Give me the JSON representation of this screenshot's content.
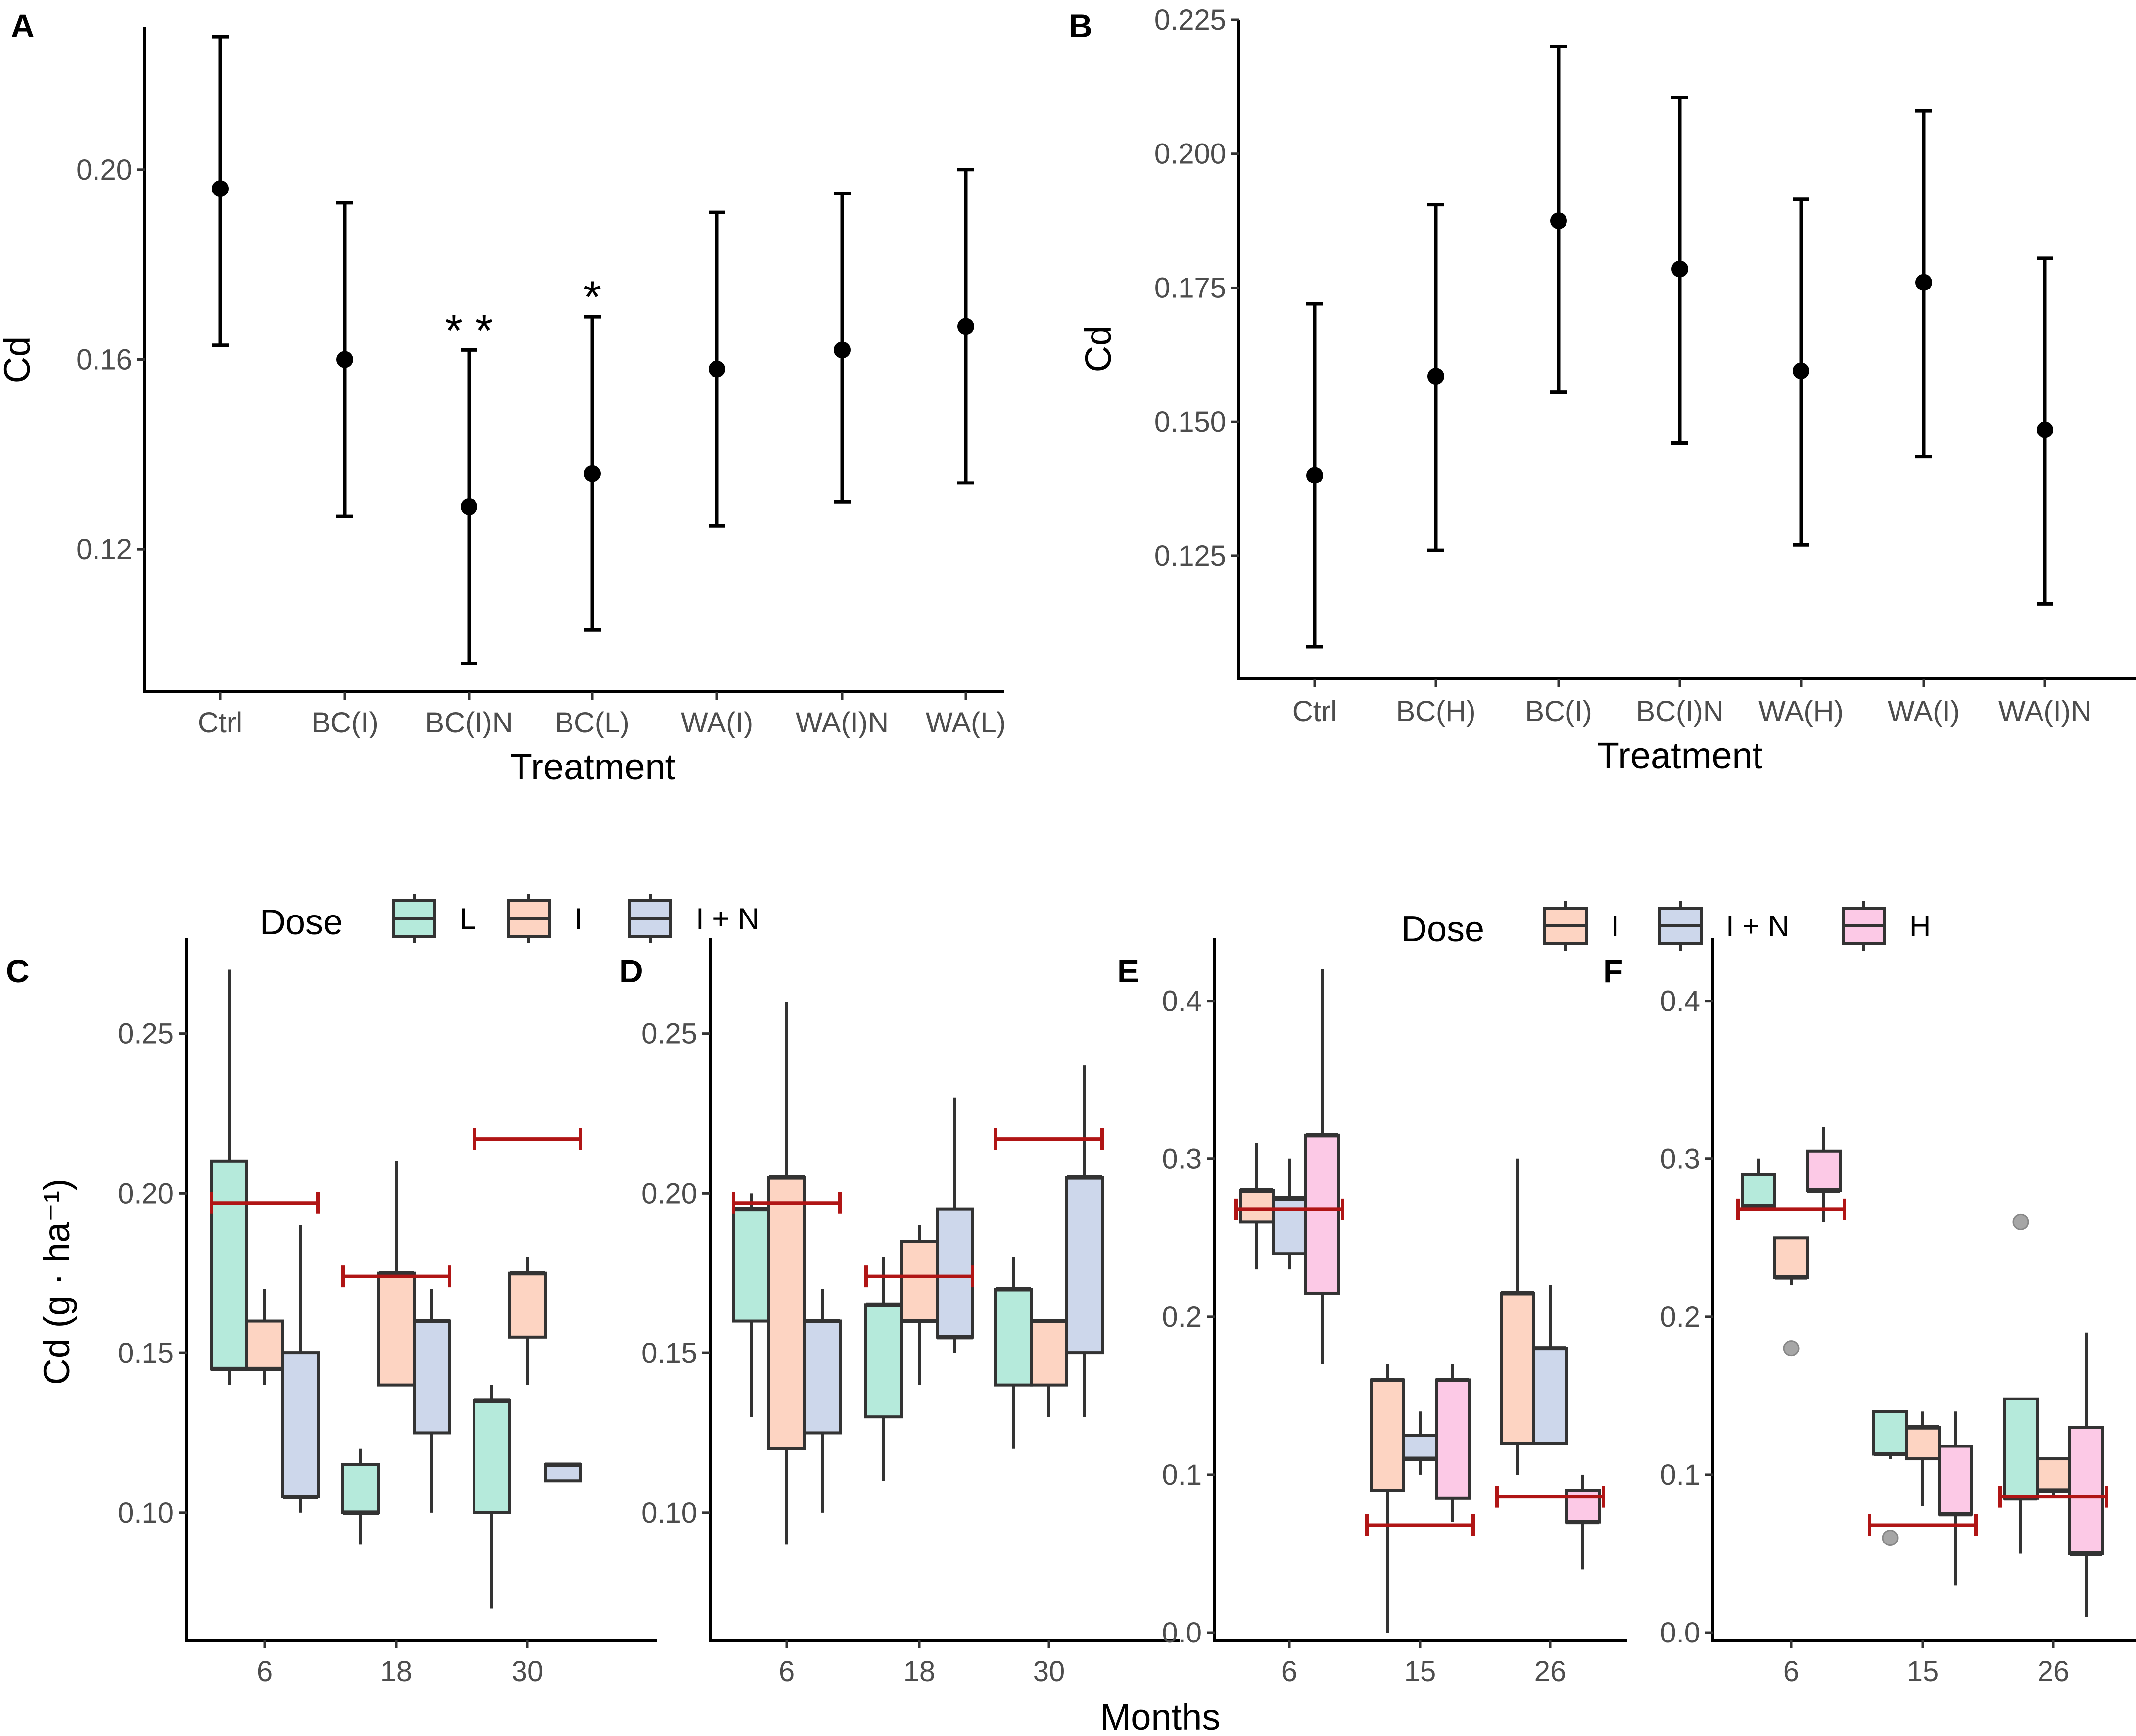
{
  "figure": {
    "xlabel_bottom": "Months",
    "colors": {
      "L": "#b5eadb",
      "I": "#fdd4c2",
      "I + N": "#cdd7eb",
      "H": "#fcc9e6",
      "ref": "#b01515"
    }
  },
  "chart_data": [
    {
      "id": "A",
      "type": "errorbar",
      "panel_label": "A",
      "xlabel": "Treatment",
      "ylabel": "Cd",
      "ylim": [
        0.09,
        0.23
      ],
      "yticks": [
        0.12,
        0.16,
        0.2
      ],
      "ytick_labels": [
        "0.12",
        "0.16",
        "0.20"
      ],
      "categories": [
        "Ctrl",
        "BC(I)",
        "BC(I)N",
        "BC(L)",
        "WA(I)",
        "WA(I)N",
        "WA(L)"
      ],
      "mean": [
        0.196,
        0.16,
        0.129,
        0.136,
        0.158,
        0.162,
        0.167
      ],
      "lower": [
        0.163,
        0.127,
        0.096,
        0.103,
        0.125,
        0.13,
        0.134
      ],
      "upper": [
        0.228,
        0.193,
        0.162,
        0.169,
        0.191,
        0.195,
        0.2
      ],
      "annotations": [
        "",
        "",
        "* *",
        "*",
        "",
        "",
        ""
      ]
    },
    {
      "id": "B",
      "type": "errorbar",
      "panel_label": "B",
      "xlabel": "Treatment",
      "ylabel": "Cd",
      "ylim": [
        0.102,
        0.225
      ],
      "yticks": [
        0.125,
        0.15,
        0.175,
        0.2,
        0.225
      ],
      "ytick_labels": [
        "0.125",
        "0.150",
        "0.175",
        "0.200",
        "0.225"
      ],
      "categories": [
        "Ctrl",
        "BC(H)",
        "BC(I)",
        "BC(I)N",
        "WA(H)",
        "WA(I)",
        "WA(I)N"
      ],
      "mean": [
        0.14,
        0.1585,
        0.1875,
        0.1785,
        0.1595,
        0.176,
        0.1485
      ],
      "lower": [
        0.108,
        0.126,
        0.1555,
        0.146,
        0.127,
        0.1435,
        0.116
      ],
      "upper": [
        0.172,
        0.1905,
        0.22,
        0.2105,
        0.1915,
        0.208,
        0.1805
      ],
      "annotations": [
        "",
        "",
        "",
        "",
        "",
        "",
        ""
      ]
    },
    {
      "id": "C",
      "type": "boxplot",
      "panel_label": "C",
      "xlabel": "",
      "ylabel": "Cd (g · ha⁻¹)",
      "ylim": [
        0.06,
        0.28
      ],
      "yticks": [
        0.1,
        0.15,
        0.2,
        0.25
      ],
      "ytick_labels": [
        "0.10",
        "0.15",
        "0.20",
        "0.25"
      ],
      "categories": [
        "6",
        "18",
        "30"
      ],
      "series_names": [
        "L",
        "I",
        "I + N"
      ],
      "boxes": [
        {
          "group": 0,
          "series": 0,
          "min": 0.14,
          "q1": 0.145,
          "med": 0.145,
          "q3": 0.21,
          "max": 0.27
        },
        {
          "group": 0,
          "series": 1,
          "min": 0.14,
          "q1": 0.145,
          "med": 0.145,
          "q3": 0.16,
          "max": 0.17
        },
        {
          "group": 0,
          "series": 2,
          "min": 0.1,
          "q1": 0.105,
          "med": 0.105,
          "q3": 0.15,
          "max": 0.19
        },
        {
          "group": 1,
          "series": 0,
          "min": 0.09,
          "q1": 0.1,
          "med": 0.1,
          "q3": 0.115,
          "max": 0.12
        },
        {
          "group": 1,
          "series": 1,
          "min": 0.14,
          "q1": 0.14,
          "med": 0.175,
          "q3": 0.175,
          "max": 0.21
        },
        {
          "group": 1,
          "series": 2,
          "min": 0.1,
          "q1": 0.125,
          "med": 0.16,
          "q3": 0.16,
          "max": 0.17
        },
        {
          "group": 2,
          "series": 0,
          "min": 0.07,
          "q1": 0.1,
          "med": 0.135,
          "q3": 0.135,
          "max": 0.14
        },
        {
          "group": 2,
          "series": 1,
          "min": 0.14,
          "q1": 0.155,
          "med": 0.175,
          "q3": 0.175,
          "max": 0.18
        },
        {
          "group": 2,
          "series": 2,
          "min": 0.11,
          "q1": 0.11,
          "med": 0.115,
          "q3": 0.115,
          "max": 0.115
        }
      ],
      "outliers": [],
      "ref_lines": [
        {
          "group": 0,
          "value": 0.197
        },
        {
          "group": 1,
          "value": 0.174
        },
        {
          "group": 2,
          "value": 0.217
        }
      ]
    },
    {
      "id": "D",
      "type": "boxplot",
      "panel_label": "D",
      "xlabel": "",
      "ylabel": "",
      "ylim": [
        0.06,
        0.28
      ],
      "yticks": [
        0.1,
        0.15,
        0.2,
        0.25
      ],
      "ytick_labels": [
        "0.10",
        "0.15",
        "0.20",
        "0.25"
      ],
      "categories": [
        "6",
        "18",
        "30"
      ],
      "series_names": [
        "L",
        "I",
        "I + N"
      ],
      "boxes": [
        {
          "group": 0,
          "series": 0,
          "min": 0.13,
          "q1": 0.16,
          "med": 0.195,
          "q3": 0.195,
          "max": 0.2
        },
        {
          "group": 0,
          "series": 1,
          "min": 0.09,
          "q1": 0.12,
          "med": 0.205,
          "q3": 0.205,
          "max": 0.26
        },
        {
          "group": 0,
          "series": 2,
          "min": 0.1,
          "q1": 0.125,
          "med": 0.16,
          "q3": 0.16,
          "max": 0.17
        },
        {
          "group": 1,
          "series": 0,
          "min": 0.11,
          "q1": 0.13,
          "med": 0.165,
          "q3": 0.165,
          "max": 0.18
        },
        {
          "group": 1,
          "series": 1,
          "min": 0.14,
          "q1": 0.16,
          "med": 0.16,
          "q3": 0.185,
          "max": 0.19
        },
        {
          "group": 1,
          "series": 2,
          "min": 0.15,
          "q1": 0.155,
          "med": 0.155,
          "q3": 0.195,
          "max": 0.23
        },
        {
          "group": 2,
          "series": 0,
          "min": 0.12,
          "q1": 0.14,
          "med": 0.17,
          "q3": 0.17,
          "max": 0.18
        },
        {
          "group": 2,
          "series": 1,
          "min": 0.13,
          "q1": 0.14,
          "med": 0.16,
          "q3": 0.16,
          "max": 0.16
        },
        {
          "group": 2,
          "series": 2,
          "min": 0.13,
          "q1": 0.15,
          "med": 0.205,
          "q3": 0.205,
          "max": 0.24
        }
      ],
      "outliers": [],
      "ref_lines": [
        {
          "group": 0,
          "value": 0.197
        },
        {
          "group": 1,
          "value": 0.174
        },
        {
          "group": 2,
          "value": 0.217
        }
      ]
    },
    {
      "id": "E",
      "type": "boxplot",
      "panel_label": "E",
      "xlabel": "",
      "ylabel": "",
      "ylim": [
        -0.005,
        0.44
      ],
      "yticks": [
        0.0,
        0.1,
        0.2,
        0.3,
        0.4
      ],
      "ytick_labels": [
        "0.0",
        "0.1",
        "0.2",
        "0.3",
        "0.4"
      ],
      "categories": [
        "6",
        "15",
        "26"
      ],
      "series_names": [
        "I",
        "I + N",
        "H"
      ],
      "boxes": [
        {
          "group": 0,
          "series": 0,
          "min": 0.23,
          "q1": 0.26,
          "med": 0.28,
          "q3": 0.28,
          "max": 0.31
        },
        {
          "group": 0,
          "series": 1,
          "min": 0.23,
          "q1": 0.24,
          "med": 0.275,
          "q3": 0.275,
          "max": 0.3
        },
        {
          "group": 0,
          "series": 2,
          "min": 0.17,
          "q1": 0.215,
          "med": 0.315,
          "q3": 0.315,
          "max": 0.42
        },
        {
          "group": 1,
          "series": 0,
          "min": 0.0,
          "q1": 0.09,
          "med": 0.16,
          "q3": 0.16,
          "max": 0.17
        },
        {
          "group": 1,
          "series": 1,
          "min": 0.1,
          "q1": 0.11,
          "med": 0.11,
          "q3": 0.125,
          "max": 0.14
        },
        {
          "group": 1,
          "series": 2,
          "min": 0.07,
          "q1": 0.085,
          "med": 0.16,
          "q3": 0.16,
          "max": 0.17
        },
        {
          "group": 2,
          "series": 0,
          "min": 0.1,
          "q1": 0.12,
          "med": 0.215,
          "q3": 0.215,
          "max": 0.3
        },
        {
          "group": 2,
          "series": 1,
          "min": 0.12,
          "q1": 0.12,
          "med": 0.18,
          "q3": 0.18,
          "max": 0.22
        },
        {
          "group": 2,
          "series": 2,
          "min": 0.04,
          "q1": 0.07,
          "med": 0.07,
          "q3": 0.09,
          "max": 0.1
        }
      ],
      "outliers": [],
      "ref_lines": [
        {
          "group": 0,
          "value": 0.268
        },
        {
          "group": 1,
          "value": 0.068
        },
        {
          "group": 2,
          "value": 0.086
        }
      ]
    },
    {
      "id": "F",
      "type": "boxplot",
      "panel_label": "F",
      "xlabel": "",
      "ylabel": "",
      "ylim": [
        -0.005,
        0.44
      ],
      "yticks": [
        0.0,
        0.1,
        0.2,
        0.3,
        0.4
      ],
      "ytick_labels": [
        "0.0",
        "0.1",
        "0.2",
        "0.3",
        "0.4"
      ],
      "categories": [
        "6",
        "15",
        "26"
      ],
      "series_names": [
        "L",
        "I",
        "H"
      ],
      "boxes": [
        {
          "group": 0,
          "series": 0,
          "min": 0.27,
          "q1": 0.27,
          "med": 0.27,
          "q3": 0.29,
          "max": 0.3
        },
        {
          "group": 0,
          "series": 1,
          "min": 0.22,
          "q1": 0.225,
          "med": 0.225,
          "q3": 0.25,
          "max": 0.25
        },
        {
          "group": 0,
          "series": 2,
          "min": 0.26,
          "q1": 0.28,
          "med": 0.28,
          "q3": 0.305,
          "max": 0.32
        },
        {
          "group": 1,
          "series": 0,
          "min": 0.11,
          "q1": 0.113,
          "med": 0.113,
          "q3": 0.14,
          "max": 0.14
        },
        {
          "group": 1,
          "series": 1,
          "min": 0.08,
          "q1": 0.11,
          "med": 0.13,
          "q3": 0.13,
          "max": 0.14
        },
        {
          "group": 1,
          "series": 2,
          "min": 0.03,
          "q1": 0.075,
          "med": 0.075,
          "q3": 0.118,
          "max": 0.14
        },
        {
          "group": 2,
          "series": 0,
          "min": 0.05,
          "q1": 0.085,
          "med": 0.085,
          "q3": 0.148,
          "max": 0.148
        },
        {
          "group": 2,
          "series": 1,
          "min": 0.085,
          "q1": 0.09,
          "med": 0.09,
          "q3": 0.11,
          "max": 0.11
        },
        {
          "group": 2,
          "series": 2,
          "min": 0.01,
          "q1": 0.05,
          "med": 0.05,
          "q3": 0.13,
          "max": 0.19
        }
      ],
      "outliers": [
        {
          "group": 0,
          "series": 1,
          "value": 0.18
        },
        {
          "group": 1,
          "series": 0,
          "value": 0.06
        },
        {
          "group": 2,
          "series": 0,
          "value": 0.26
        }
      ],
      "ref_lines": [
        {
          "group": 0,
          "value": 0.268
        },
        {
          "group": 1,
          "value": 0.068
        },
        {
          "group": 2,
          "value": 0.086
        }
      ]
    }
  ],
  "legends": [
    {
      "title": "Dose",
      "items": [
        "L",
        "I",
        "I + N"
      ]
    },
    {
      "title": "Dose",
      "items": [
        "I",
        "I + N",
        "H"
      ]
    }
  ]
}
